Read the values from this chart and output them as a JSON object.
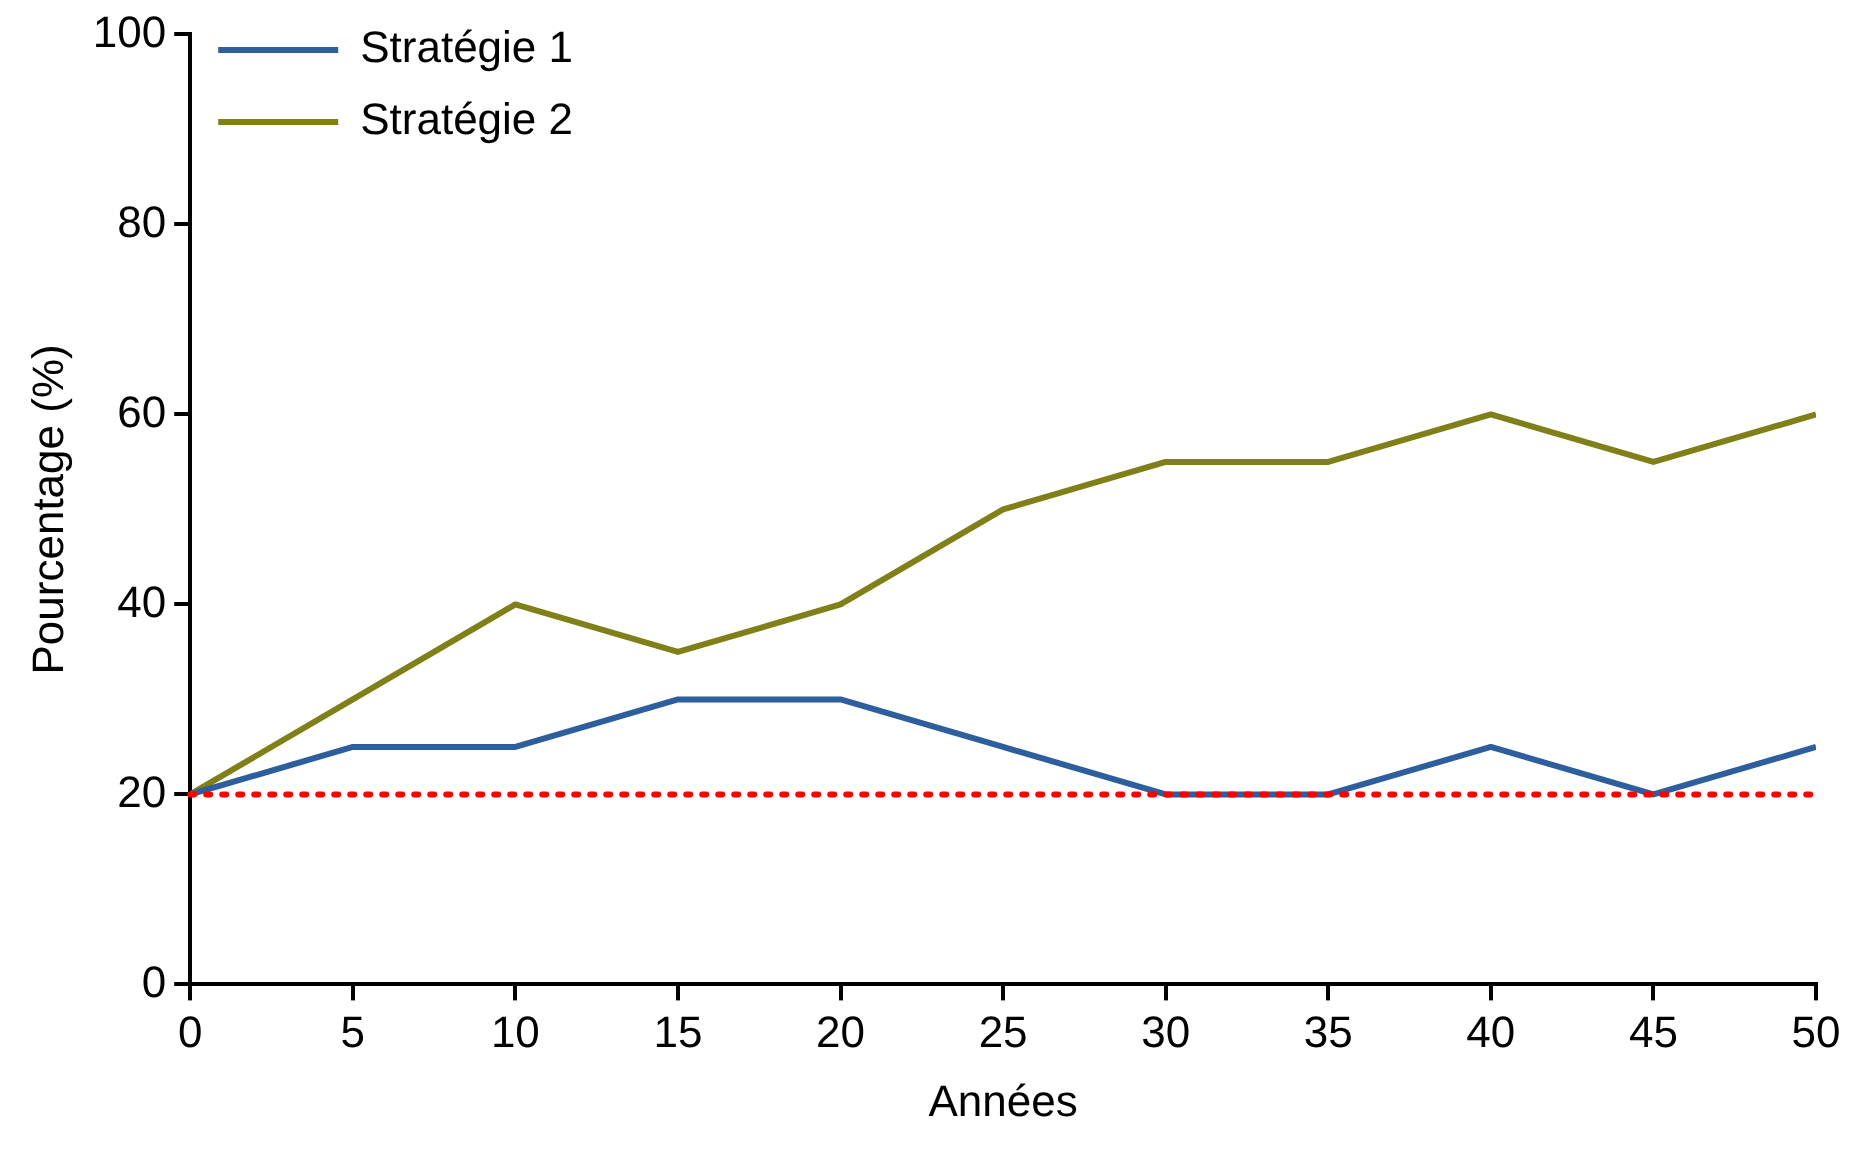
{
  "chart_data": {
    "type": "line",
    "xlabel": "Années",
    "ylabel": "Pourcentage (%)",
    "x": [
      0,
      5,
      10,
      15,
      20,
      25,
      30,
      35,
      40,
      45,
      50
    ],
    "series": [
      {
        "name": "Stratégie 1",
        "color": "#2d5f9e",
        "values": [
          20,
          25,
          25,
          30,
          30,
          25,
          20,
          20,
          25,
          20,
          25
        ]
      },
      {
        "name": "Stratégie 2",
        "color": "#808018",
        "values": [
          20,
          30,
          40,
          35,
          40,
          50,
          55,
          55,
          60,
          55,
          60
        ]
      }
    ],
    "xlim": [
      0,
      50
    ],
    "xticks": [
      0,
      5,
      10,
      15,
      20,
      25,
      30,
      35,
      40,
      45,
      50
    ],
    "ylim": [
      0,
      100
    ],
    "yticks": [
      0,
      20,
      40,
      60,
      80,
      100
    ],
    "ref_lines": [
      {
        "axis": "y",
        "value": 20,
        "color": "#ff0000",
        "line_style": "dotted"
      }
    ],
    "grid": false,
    "legend": "top left",
    "marker": "none",
    "line_style": "solid"
  }
}
